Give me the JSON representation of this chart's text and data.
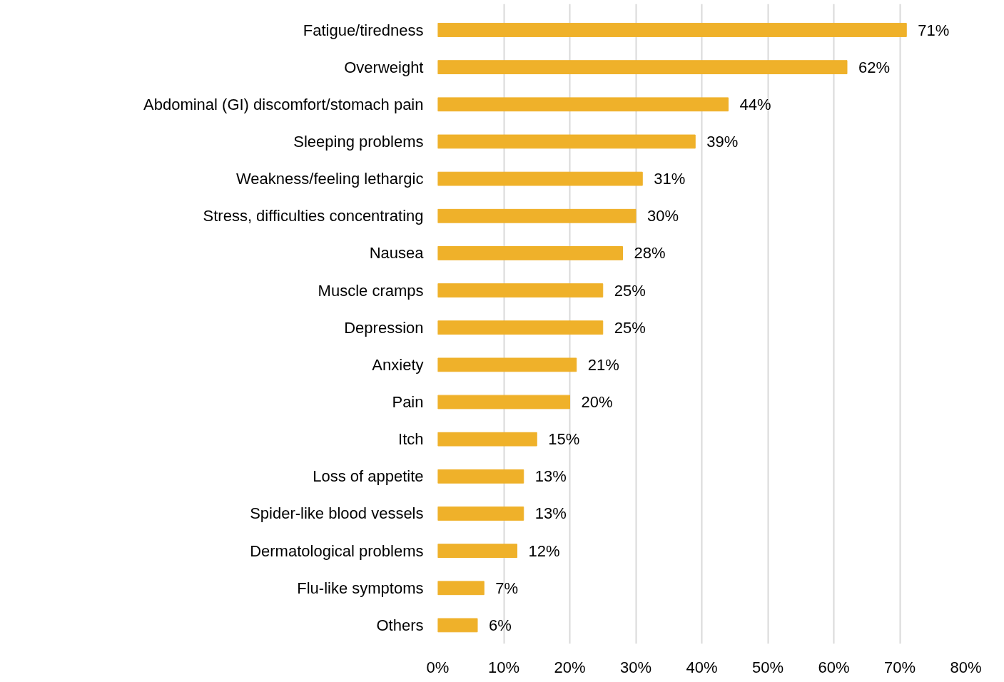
{
  "chart_data": {
    "type": "bar",
    "orientation": "horizontal",
    "categories": [
      "Fatigue/tiredness",
      "Overweight",
      "Abdominal (GI) discomfort/stomach pain",
      "Sleeping problems",
      "Weakness/feeling lethargic",
      "Stress, difficulties concentrating",
      "Nausea",
      "Muscle cramps",
      "Depression",
      "Anxiety",
      "Pain",
      "Itch",
      "Loss of appetite",
      "Spider-like blood vessels",
      "Dermatological problems",
      "Flu-like symptoms",
      "Others"
    ],
    "values": [
      71,
      62,
      44,
      39,
      31,
      30,
      28,
      25,
      25,
      21,
      20,
      15,
      13,
      13,
      12,
      7,
      6
    ],
    "value_labels": [
      "71%",
      "62%",
      "44%",
      "39%",
      "31%",
      "30%",
      "28%",
      "25%",
      "25%",
      "21%",
      "20%",
      "15%",
      "13%",
      "13%",
      "12%",
      "7%",
      "6%"
    ],
    "color": "#efb12a",
    "xlim": [
      0,
      80
    ],
    "xticks": [
      {
        "value": 0,
        "label": "0%"
      },
      {
        "value": 10,
        "label": "10%"
      },
      {
        "value": 20,
        "label": "20%"
      },
      {
        "value": 30,
        "label": "30%"
      },
      {
        "value": 40,
        "label": "40%"
      },
      {
        "value": 50,
        "label": "50%"
      },
      {
        "value": 60,
        "label": "60%"
      },
      {
        "value": 70,
        "label": "70%"
      },
      {
        "value": 80,
        "label": "80%"
      }
    ],
    "grid": "x"
  }
}
